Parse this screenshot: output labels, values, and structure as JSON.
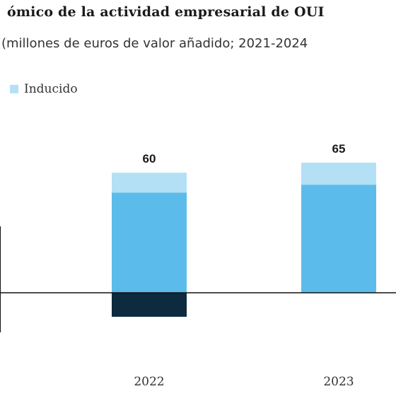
{
  "header": {
    "title": "ómico de la actividad empresarial de OUI",
    "subtitle": "(millones de euros de valor añadido; 2021-2024"
  },
  "legend": {
    "items": [
      {
        "label": "Inducido",
        "color": "#b3e0f5"
      }
    ]
  },
  "colors": {
    "light": "#b3e0f5",
    "medium": "#5bbcec",
    "dark": "#0d2a3e",
    "axis": "#111111"
  },
  "chart_data": {
    "type": "bar",
    "stacked": true,
    "categories": [
      "2022",
      "2023"
    ],
    "totals": [
      60,
      65
    ],
    "series": [
      {
        "name": "Inducido",
        "color": "#b3e0f5",
        "values": [
          10,
          11
        ]
      },
      {
        "color": "#5bbcec",
        "values": [
          50,
          54
        ]
      },
      {
        "color": "#0d2a3e",
        "values": [
          -12,
          0
        ]
      }
    ],
    "ylim": [
      -20,
      70
    ],
    "grid": false,
    "legend_position": "top-left"
  }
}
